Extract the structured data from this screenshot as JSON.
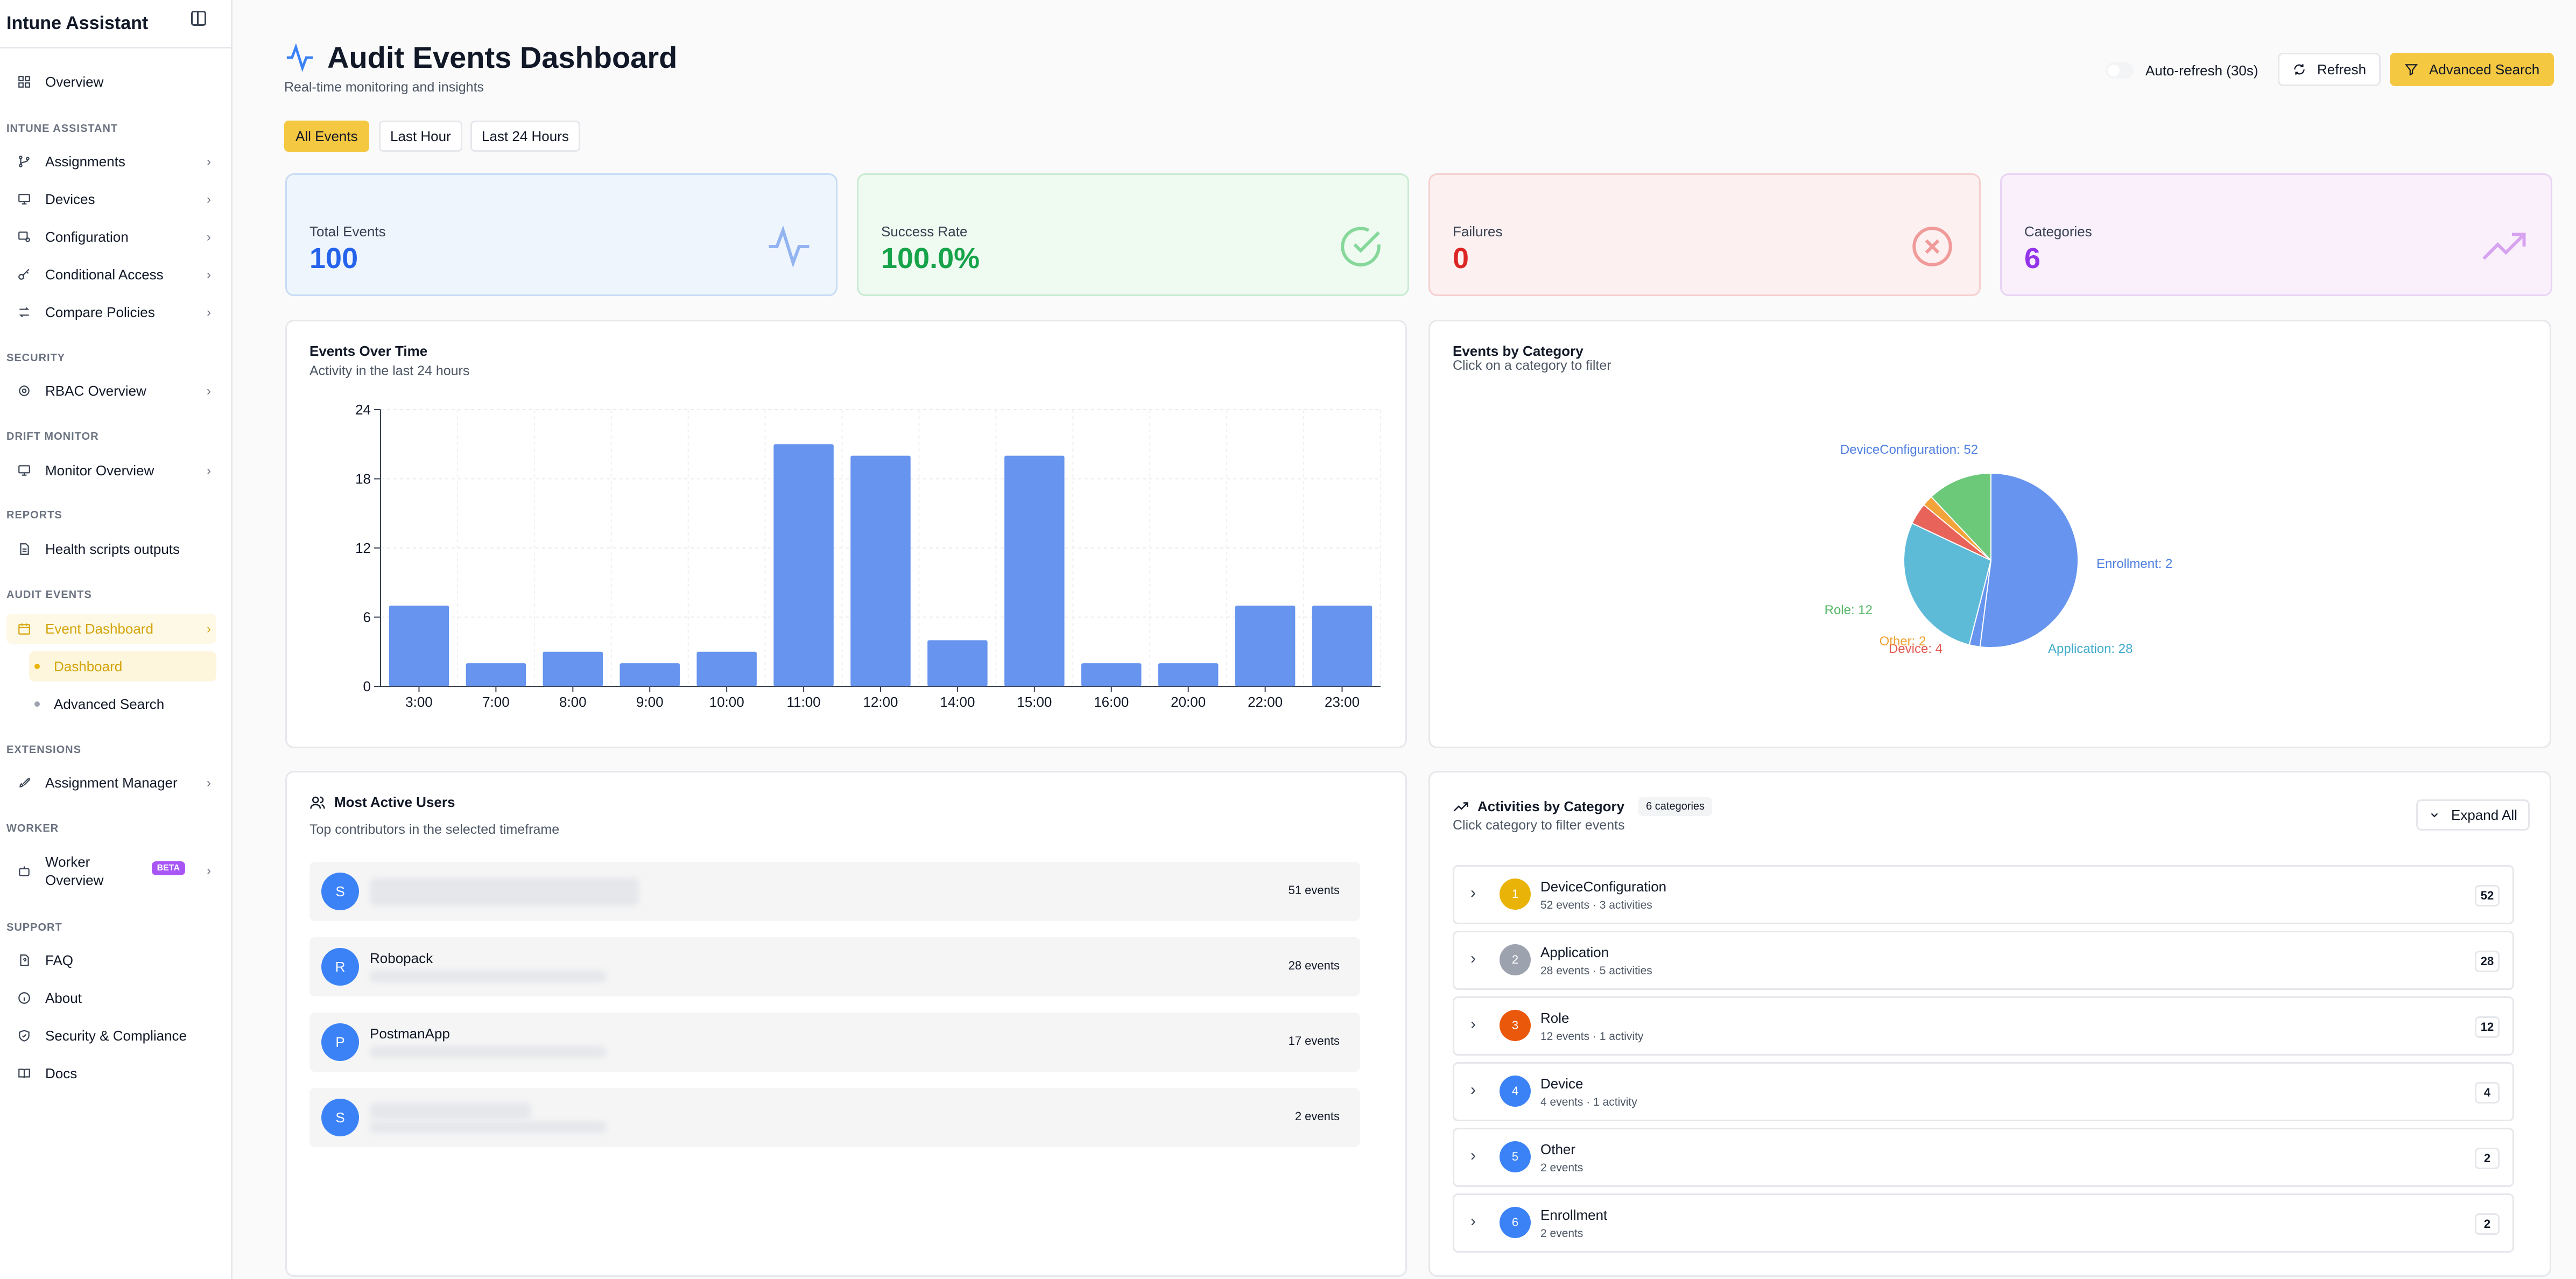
{
  "sidebar": {
    "title": "Intune Assistant",
    "overview": "Overview",
    "sections": {
      "intune": "INTUNE ASSISTANT",
      "security": "SECURITY",
      "drift": "DRIFT MONITOR",
      "reports": "REPORTS",
      "audit": "AUDIT EVENTS",
      "extensions": "EXTENSIONS",
      "worker": "WORKER",
      "support": "SUPPORT"
    },
    "items": {
      "assignments": "Assignments",
      "devices": "Devices",
      "configuration": "Configuration",
      "conditional_access": "Conditional Access",
      "compare_policies": "Compare Policies",
      "rbac": "RBAC Overview",
      "monitor": "Monitor Overview",
      "health": "Health scripts outputs",
      "event_dashboard": "Event Dashboard",
      "dashboard": "Dashboard",
      "advanced_search": "Advanced Search",
      "assignment_manager": "Assignment Manager",
      "worker_overview_1": "Worker",
      "worker_overview_2": "Overview",
      "beta": "BETA",
      "faq": "FAQ",
      "about": "About",
      "security_compliance": "Security & Compliance",
      "docs": "Docs"
    }
  },
  "header": {
    "title": "Audit Events Dashboard",
    "subtitle": "Real-time monitoring and insights",
    "auto_refresh": "Auto-refresh (30s)",
    "refresh": "Refresh",
    "advanced_search": "Advanced Search"
  },
  "tabs": [
    "All Events",
    "Last Hour",
    "Last 24 Hours"
  ],
  "stats": {
    "total": {
      "label": "Total Events",
      "value": "100"
    },
    "success": {
      "label": "Success Rate",
      "value": "100.0%"
    },
    "failures": {
      "label": "Failures",
      "value": "0"
    },
    "categories": {
      "label": "Categories",
      "value": "6"
    }
  },
  "events_chart": {
    "title": "Events Over Time",
    "subtitle": "Activity in the last 24 hours"
  },
  "category_chart": {
    "title": "Events by Category",
    "subtitle": "Click on a category to filter"
  },
  "chart_data": [
    {
      "type": "bar",
      "categories": [
        "3:00",
        "7:00",
        "8:00",
        "9:00",
        "10:00",
        "11:00",
        "12:00",
        "14:00",
        "15:00",
        "16:00",
        "20:00",
        "22:00",
        "23:00"
      ],
      "values": [
        7,
        2,
        3,
        2,
        3,
        21,
        20,
        4,
        20,
        2,
        2,
        7,
        7
      ],
      "ylim": [
        0,
        24
      ],
      "yticks": [
        0,
        6,
        12,
        18,
        24
      ],
      "color": "#6694ee",
      "grid": true
    },
    {
      "type": "pie",
      "slices": [
        {
          "name": "DeviceConfiguration",
          "value": 52,
          "color": "#6694ee"
        },
        {
          "name": "Enrollment",
          "value": 2,
          "color": "#6694ee"
        },
        {
          "name": "Application",
          "value": 28,
          "color": "#5ebbd8"
        },
        {
          "name": "Device",
          "value": 4,
          "color": "#e8635a"
        },
        {
          "name": "Other",
          "value": 2,
          "color": "#f2a33a"
        },
        {
          "name": "Role",
          "value": 12,
          "color": "#6cc97a"
        }
      ],
      "labels": [
        "DeviceConfiguration: 52",
        "Enrollment: 2",
        "Application: 28",
        "Device: 4",
        "Other: 2",
        "Role: 12"
      ]
    }
  ],
  "users": {
    "title": "Most Active Users",
    "subtitle": "Top contributors in the selected timeframe",
    "rows": [
      {
        "initial": "S",
        "name": "",
        "count": "51 events"
      },
      {
        "initial": "R",
        "name": "Robopack",
        "count": "28 events"
      },
      {
        "initial": "P",
        "name": "PostmanApp",
        "count": "17 events"
      },
      {
        "initial": "S",
        "name": "",
        "count": "2 events"
      }
    ]
  },
  "activities": {
    "title": "Activities by Category",
    "badge": "6 categories",
    "subtitle": "Click category to filter events",
    "expand": "Expand All",
    "rows": [
      {
        "num": "1",
        "name": "DeviceConfiguration",
        "meta": "52 events · 3 activities",
        "count": "52",
        "color": "#eab308"
      },
      {
        "num": "2",
        "name": "Application",
        "meta": "28 events · 5 activities",
        "count": "28",
        "color": "#9ca3af"
      },
      {
        "num": "3",
        "name": "Role",
        "meta": "12 events · 1 activity",
        "count": "12",
        "color": "#ea580c"
      },
      {
        "num": "4",
        "name": "Device",
        "meta": "4 events · 1 activity",
        "count": "4",
        "color": "#3b82f6"
      },
      {
        "num": "5",
        "name": "Other",
        "meta": "2 events",
        "count": "2",
        "color": "#3b82f6"
      },
      {
        "num": "6",
        "name": "Enrollment",
        "meta": "2 events",
        "count": "2",
        "color": "#3b82f6"
      }
    ]
  }
}
